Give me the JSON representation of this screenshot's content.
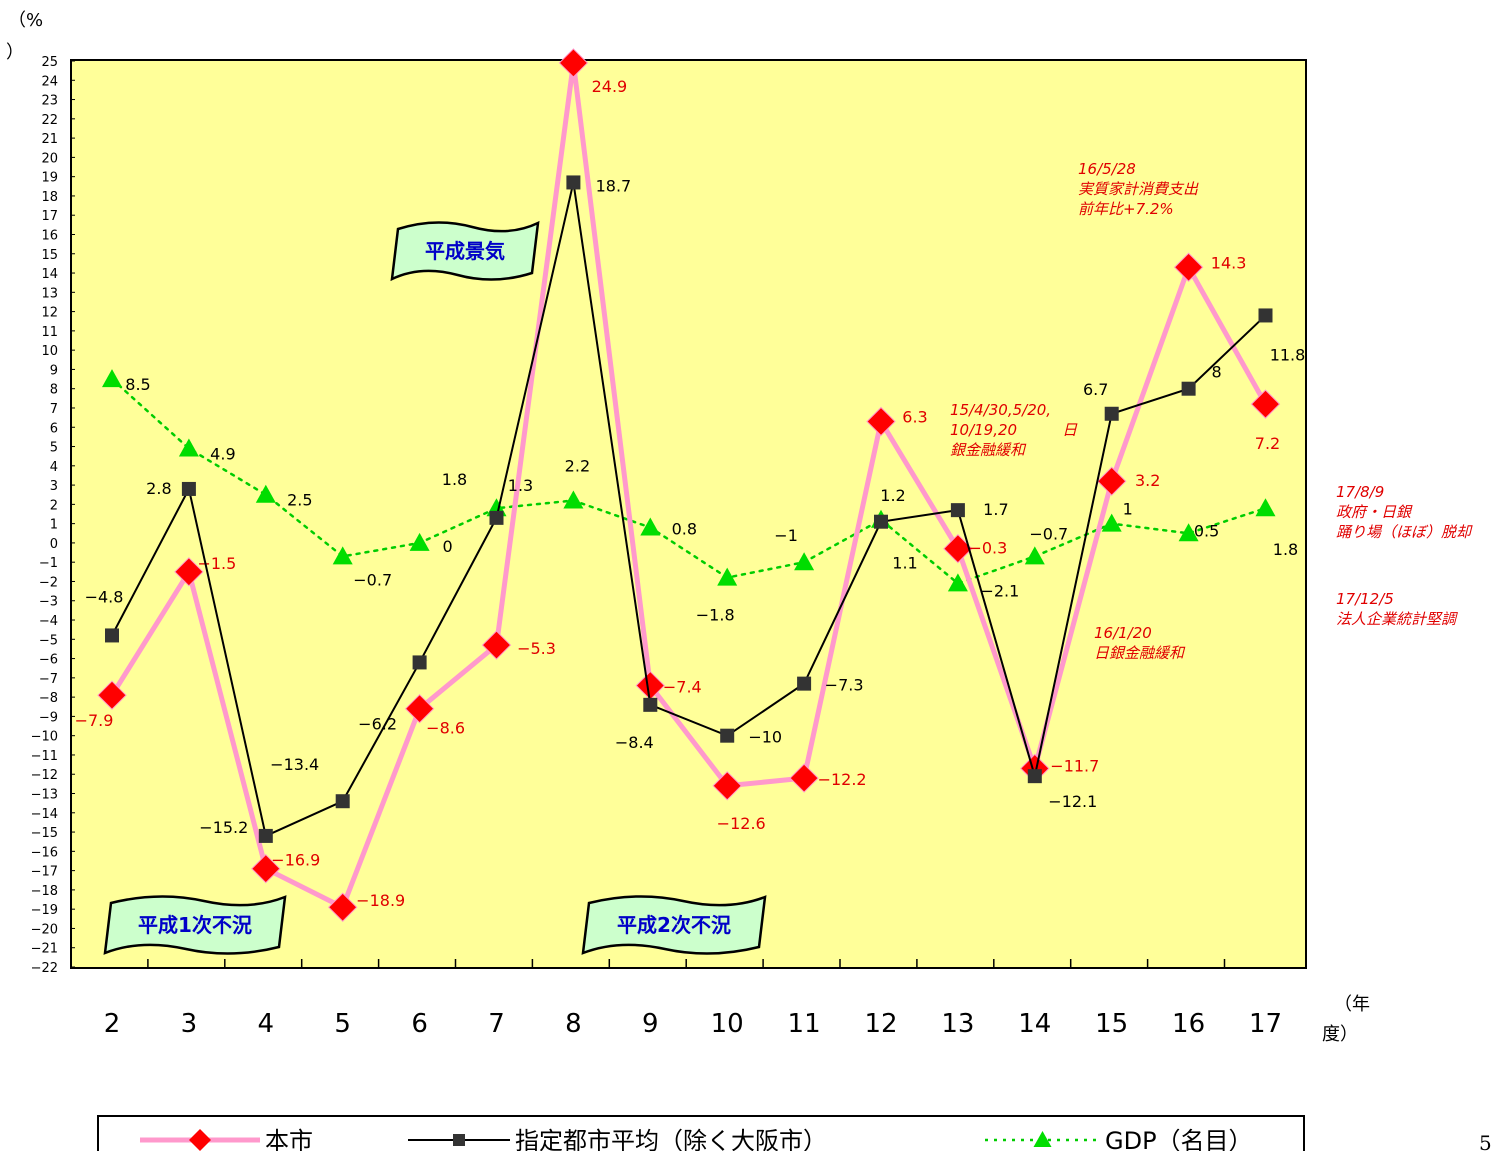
{
  "page": {
    "page_number": "5"
  },
  "chart_data": {
    "type": "line",
    "categories": [
      "2",
      "3",
      "4",
      "5",
      "6",
      "7",
      "8",
      "9",
      "10",
      "11",
      "12",
      "13",
      "14",
      "15",
      "16",
      "17"
    ],
    "y_unit_label": "（%）",
    "x_unit_label": "（年度）",
    "ylim": [
      -22,
      25
    ],
    "yticks": [
      25,
      24,
      23,
      22,
      21,
      20,
      19,
      18,
      17,
      16,
      15,
      14,
      13,
      12,
      11,
      10,
      9,
      8,
      7,
      6,
      5,
      4,
      3,
      2,
      1,
      0,
      -1,
      -2,
      -3,
      -4,
      -5,
      -6,
      -7,
      -8,
      -9,
      -10,
      -11,
      -12,
      -13,
      -14,
      -15,
      -16,
      -17,
      -18,
      -19,
      -20,
      -21,
      -22
    ],
    "plot_background": "#ffff99",
    "grid": false,
    "series": [
      {
        "name": "本市",
        "values": [
          -7.9,
          -1.5,
          -16.9,
          -18.9,
          -8.6,
          -5.3,
          24.9,
          -7.4,
          -12.6,
          -12.2,
          6.3,
          -0.3,
          -11.7,
          3.2,
          14.3,
          7.2
        ],
        "labels": [
          "-7.9",
          "-1.5",
          "-16.9",
          "-18.9",
          "-8.6",
          "-5.3",
          "24.9",
          "-7.4",
          "-12.6",
          "-12.2",
          "6.3",
          "-0.3",
          "-11.7",
          "3.2",
          "14.3",
          "7.2"
        ],
        "line_color": "#ff99cc",
        "marker": "diamond",
        "marker_color": "#ff0000",
        "label_color": "#e00000"
      },
      {
        "name": "指定都市平均（除く大阪市）",
        "values": [
          -4.8,
          2.8,
          -15.2,
          -13.4,
          -6.2,
          1.3,
          18.7,
          -8.4,
          -10,
          -7.3,
          1.1,
          1.7,
          -12.1,
          6.7,
          8,
          11.8
        ],
        "labels": [
          "-4.8",
          "2.8",
          "-15.2",
          "-13.4",
          "-6.2",
          "1.3",
          "18.7",
          "-8.4",
          "-10",
          "-7.3",
          "1.1",
          "1.7",
          "-12.1",
          "6.7",
          "8",
          "11.8"
        ],
        "line_color": "#000000",
        "marker": "square",
        "marker_color": "#333333",
        "label_color": "#000000"
      },
      {
        "name": "GDP（名目）",
        "values": [
          8.5,
          4.9,
          2.5,
          -0.7,
          0,
          1.8,
          2.2,
          0.8,
          -1.8,
          -1,
          1.2,
          -2.1,
          -0.7,
          1,
          0.5,
          1.8
        ],
        "labels": [
          "8.5",
          "4.9",
          "2.5",
          "-0.7",
          "0",
          "1.8",
          "2.2",
          "0.8",
          "-1.8",
          "-1",
          "1.2",
          "-2.1",
          "-0.7",
          "1",
          "0.5",
          "1.8"
        ],
        "line_color": "#00cc00",
        "line_style": "dotted",
        "marker": "triangle",
        "marker_color": "#00dd00",
        "label_color": "#000000"
      }
    ],
    "banners": [
      {
        "text": "平成景気"
      },
      {
        "text": "平成1次不況"
      },
      {
        "text": "平成2次不況"
      }
    ],
    "annotations": [
      {
        "lines": [
          "16/5/28",
          "実質家計消費支出",
          "前年比+7.2%"
        ]
      },
      {
        "lines": [
          "15/4/30,5/20,",
          "10/19,20　　　日",
          "銀金融緩和"
        ]
      },
      {
        "lines": [
          "16/1/20",
          "日銀金融緩和"
        ]
      },
      {
        "lines": [
          "17/8/9",
          "政府・日銀",
          "踊り場（ほぼ）脱却"
        ]
      },
      {
        "lines": [
          "17/12/5",
          "法人企業統計堅調"
        ]
      }
    ],
    "legend": {
      "placement": "bottom",
      "items": [
        "本市",
        "指定都市平均（除く大阪市）",
        "GDP（名目）"
      ]
    }
  }
}
